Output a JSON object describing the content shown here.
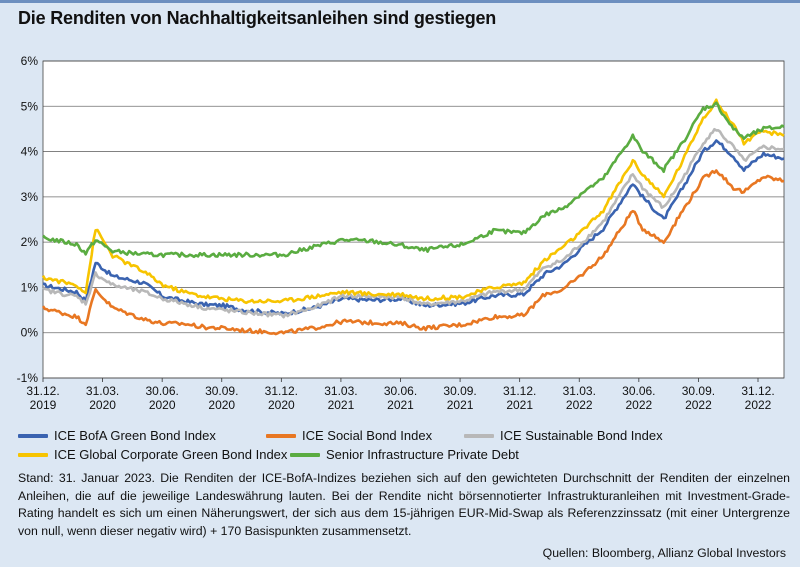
{
  "title": "Die Renditen von Nachhaltigkeitsanleihen sind gestiegen",
  "chart_data": {
    "type": "line",
    "ylim": [
      -1,
      6
    ],
    "yticks": [
      "-1%",
      "0%",
      "1%",
      "2%",
      "3%",
      "4%",
      "5%",
      "6%"
    ],
    "x_range": [
      "2019-12-31",
      "2023-01-31"
    ],
    "x_tick_labels": [
      [
        "31.12.",
        "2019"
      ],
      [
        "31.03.",
        "2020"
      ],
      [
        "30.06.",
        "2020"
      ],
      [
        "30.09.",
        "2020"
      ],
      [
        "31.12.",
        "2020"
      ],
      [
        "31.03.",
        "2021"
      ],
      [
        "30.06.",
        "2021"
      ],
      [
        "30.09.",
        "2021"
      ],
      [
        "31.12.",
        "2021"
      ],
      [
        "31.03.",
        "2022"
      ],
      [
        "30.06.",
        "2022"
      ],
      [
        "30.09.",
        "2022"
      ],
      [
        "31.12.",
        "2022"
      ]
    ],
    "grid": true,
    "series": [
      {
        "name": "ICE BofA Green Bond Index",
        "color": "#3a63b0",
        "points": [
          [
            "2019-12-31",
            1.05
          ],
          [
            "2020-02-20",
            0.9
          ],
          [
            "2020-03-05",
            0.7
          ],
          [
            "2020-03-20",
            1.55
          ],
          [
            "2020-04-15",
            1.25
          ],
          [
            "2020-06-01",
            1.1
          ],
          [
            "2020-07-01",
            0.8
          ],
          [
            "2020-08-01",
            0.7
          ],
          [
            "2020-09-01",
            0.62
          ],
          [
            "2020-09-30",
            0.6
          ],
          [
            "2020-11-01",
            0.5
          ],
          [
            "2020-12-31",
            0.42
          ],
          [
            "2021-02-15",
            0.55
          ],
          [
            "2021-03-31",
            0.75
          ],
          [
            "2021-05-15",
            0.72
          ],
          [
            "2021-06-30",
            0.75
          ],
          [
            "2021-08-01",
            0.6
          ],
          [
            "2021-09-30",
            0.65
          ],
          [
            "2021-11-15",
            0.82
          ],
          [
            "2021-12-31",
            0.85
          ],
          [
            "2022-02-01",
            1.3
          ],
          [
            "2022-03-01",
            1.5
          ],
          [
            "2022-03-31",
            1.9
          ],
          [
            "2022-05-01",
            2.3
          ],
          [
            "2022-06-15",
            3.3
          ],
          [
            "2022-06-30",
            3.0
          ],
          [
            "2022-08-01",
            2.5
          ],
          [
            "2022-08-30",
            3.2
          ],
          [
            "2022-09-30",
            4.0
          ],
          [
            "2022-10-20",
            4.25
          ],
          [
            "2022-11-15",
            3.9
          ],
          [
            "2022-12-01",
            3.6
          ],
          [
            "2022-12-31",
            3.95
          ],
          [
            "2023-01-31",
            3.85
          ]
        ]
      },
      {
        "name": "ICE Social Bond Index",
        "color": "#e87722",
        "points": [
          [
            "2019-12-31",
            0.55
          ],
          [
            "2020-02-20",
            0.35
          ],
          [
            "2020-03-05",
            0.2
          ],
          [
            "2020-03-20",
            0.95
          ],
          [
            "2020-04-15",
            0.55
          ],
          [
            "2020-06-01",
            0.3
          ],
          [
            "2020-07-01",
            0.2
          ],
          [
            "2020-08-01",
            0.2
          ],
          [
            "2020-09-01",
            0.12
          ],
          [
            "2020-09-30",
            0.1
          ],
          [
            "2020-11-01",
            0.05
          ],
          [
            "2020-12-31",
            0.0
          ],
          [
            "2021-02-15",
            0.1
          ],
          [
            "2021-03-31",
            0.25
          ],
          [
            "2021-05-15",
            0.22
          ],
          [
            "2021-06-30",
            0.2
          ],
          [
            "2021-08-01",
            0.1
          ],
          [
            "2021-09-30",
            0.18
          ],
          [
            "2021-11-15",
            0.35
          ],
          [
            "2021-12-31",
            0.38
          ],
          [
            "2022-02-01",
            0.85
          ],
          [
            "2022-03-01",
            0.95
          ],
          [
            "2022-03-31",
            1.3
          ],
          [
            "2022-05-01",
            1.7
          ],
          [
            "2022-06-15",
            2.7
          ],
          [
            "2022-06-30",
            2.3
          ],
          [
            "2022-08-01",
            2.0
          ],
          [
            "2022-08-30",
            2.7
          ],
          [
            "2022-09-30",
            3.4
          ],
          [
            "2022-10-20",
            3.6
          ],
          [
            "2022-11-15",
            3.2
          ],
          [
            "2022-12-01",
            3.1
          ],
          [
            "2022-12-31",
            3.45
          ],
          [
            "2023-01-31",
            3.35
          ]
        ]
      },
      {
        "name": "ICE Sustainable Bond Index",
        "color": "#b8b8b8",
        "points": [
          [
            "2019-12-31",
            0.95
          ],
          [
            "2020-02-20",
            0.8
          ],
          [
            "2020-03-05",
            0.65
          ],
          [
            "2020-03-20",
            1.3
          ],
          [
            "2020-04-15",
            1.05
          ],
          [
            "2020-06-01",
            0.9
          ],
          [
            "2020-07-01",
            0.75
          ],
          [
            "2020-08-01",
            0.65
          ],
          [
            "2020-09-01",
            0.55
          ],
          [
            "2020-09-30",
            0.5
          ],
          [
            "2020-11-01",
            0.45
          ],
          [
            "2020-12-31",
            0.38
          ],
          [
            "2021-02-15",
            0.55
          ],
          [
            "2021-03-31",
            0.82
          ],
          [
            "2021-05-15",
            0.8
          ],
          [
            "2021-06-30",
            0.78
          ],
          [
            "2021-08-01",
            0.62
          ],
          [
            "2021-09-30",
            0.7
          ],
          [
            "2021-11-15",
            0.9
          ],
          [
            "2021-12-31",
            0.95
          ],
          [
            "2022-02-01",
            1.45
          ],
          [
            "2022-03-01",
            1.6
          ],
          [
            "2022-03-31",
            2.0
          ],
          [
            "2022-05-01",
            2.45
          ],
          [
            "2022-06-15",
            3.5
          ],
          [
            "2022-06-30",
            3.2
          ],
          [
            "2022-08-01",
            2.75
          ],
          [
            "2022-08-30",
            3.4
          ],
          [
            "2022-09-30",
            4.2
          ],
          [
            "2022-10-20",
            4.5
          ],
          [
            "2022-11-15",
            4.1
          ],
          [
            "2022-12-01",
            3.8
          ],
          [
            "2022-12-31",
            4.1
          ],
          [
            "2023-01-31",
            4.05
          ]
        ]
      },
      {
        "name": "ICE Global Corporate Green Bond Index",
        "color": "#f7c400",
        "points": [
          [
            "2019-12-31",
            1.22
          ],
          [
            "2020-02-20",
            1.05
          ],
          [
            "2020-03-05",
            0.9
          ],
          [
            "2020-03-20",
            2.3
          ],
          [
            "2020-04-15",
            1.7
          ],
          [
            "2020-06-01",
            1.35
          ],
          [
            "2020-07-01",
            1.05
          ],
          [
            "2020-08-01",
            0.9
          ],
          [
            "2020-09-01",
            0.8
          ],
          [
            "2020-09-30",
            0.75
          ],
          [
            "2020-11-01",
            0.7
          ],
          [
            "2020-12-31",
            0.7
          ],
          [
            "2021-02-15",
            0.8
          ],
          [
            "2021-03-31",
            0.9
          ],
          [
            "2021-05-15",
            0.85
          ],
          [
            "2021-06-30",
            0.85
          ],
          [
            "2021-08-01",
            0.75
          ],
          [
            "2021-09-30",
            0.8
          ],
          [
            "2021-11-15",
            1.0
          ],
          [
            "2021-12-31",
            1.1
          ],
          [
            "2022-02-01",
            1.6
          ],
          [
            "2022-03-01",
            1.9
          ],
          [
            "2022-03-31",
            2.25
          ],
          [
            "2022-05-01",
            2.7
          ],
          [
            "2022-06-15",
            3.8
          ],
          [
            "2022-06-30",
            3.5
          ],
          [
            "2022-08-01",
            3.0
          ],
          [
            "2022-08-30",
            3.8
          ],
          [
            "2022-09-30",
            4.75
          ],
          [
            "2022-10-20",
            5.1
          ],
          [
            "2022-11-15",
            4.6
          ],
          [
            "2022-12-01",
            4.2
          ],
          [
            "2022-12-31",
            4.45
          ],
          [
            "2023-01-31",
            4.35
          ]
        ]
      },
      {
        "name": "Senior Infrastructure Private Debt",
        "color": "#5aac41",
        "points": [
          [
            "2019-12-31",
            2.1
          ],
          [
            "2020-02-20",
            1.95
          ],
          [
            "2020-03-05",
            1.75
          ],
          [
            "2020-03-20",
            2.05
          ],
          [
            "2020-04-15",
            1.8
          ],
          [
            "2020-06-01",
            1.73
          ],
          [
            "2020-07-01",
            1.72
          ],
          [
            "2020-08-01",
            1.72
          ],
          [
            "2020-09-01",
            1.72
          ],
          [
            "2020-09-30",
            1.72
          ],
          [
            "2020-11-01",
            1.72
          ],
          [
            "2020-12-31",
            1.72
          ],
          [
            "2021-02-15",
            1.9
          ],
          [
            "2021-03-31",
            2.05
          ],
          [
            "2021-05-15",
            2.02
          ],
          [
            "2021-06-30",
            1.92
          ],
          [
            "2021-08-01",
            1.82
          ],
          [
            "2021-09-30",
            1.95
          ],
          [
            "2021-11-15",
            2.25
          ],
          [
            "2021-12-31",
            2.2
          ],
          [
            "2022-02-01",
            2.6
          ],
          [
            "2022-03-01",
            2.75
          ],
          [
            "2022-03-31",
            3.1
          ],
          [
            "2022-05-01",
            3.4
          ],
          [
            "2022-06-15",
            4.35
          ],
          [
            "2022-06-30",
            4.0
          ],
          [
            "2022-08-01",
            3.6
          ],
          [
            "2022-08-30",
            4.2
          ],
          [
            "2022-09-30",
            4.95
          ],
          [
            "2022-10-20",
            5.05
          ],
          [
            "2022-11-15",
            4.5
          ],
          [
            "2022-12-01",
            4.3
          ],
          [
            "2022-12-31",
            4.5
          ],
          [
            "2023-01-31",
            4.55
          ]
        ]
      }
    ]
  },
  "notes": "Stand: 31. Januar 2023. Die Renditen der ICE-BofA-Indizes beziehen sich auf den gewichteten Durchschnitt der Renditen der einzelnen Anleihen, die auf die jeweilige Landeswährung lauten. Bei der Rendite nicht börsennotierter Infrastruktur­anleihen mit Investment-Grade-Rating handelt es sich um einen Näherungswert, der sich aus dem 15-jährigen EUR-Mid-Swap als Referenzzinssatz (mit einer Untergrenze von null, wenn dieser negativ wird) + 170 Basispunkten zusammensetzt.",
  "sources": "Quellen: Bloomberg, Allianz Global Investors"
}
